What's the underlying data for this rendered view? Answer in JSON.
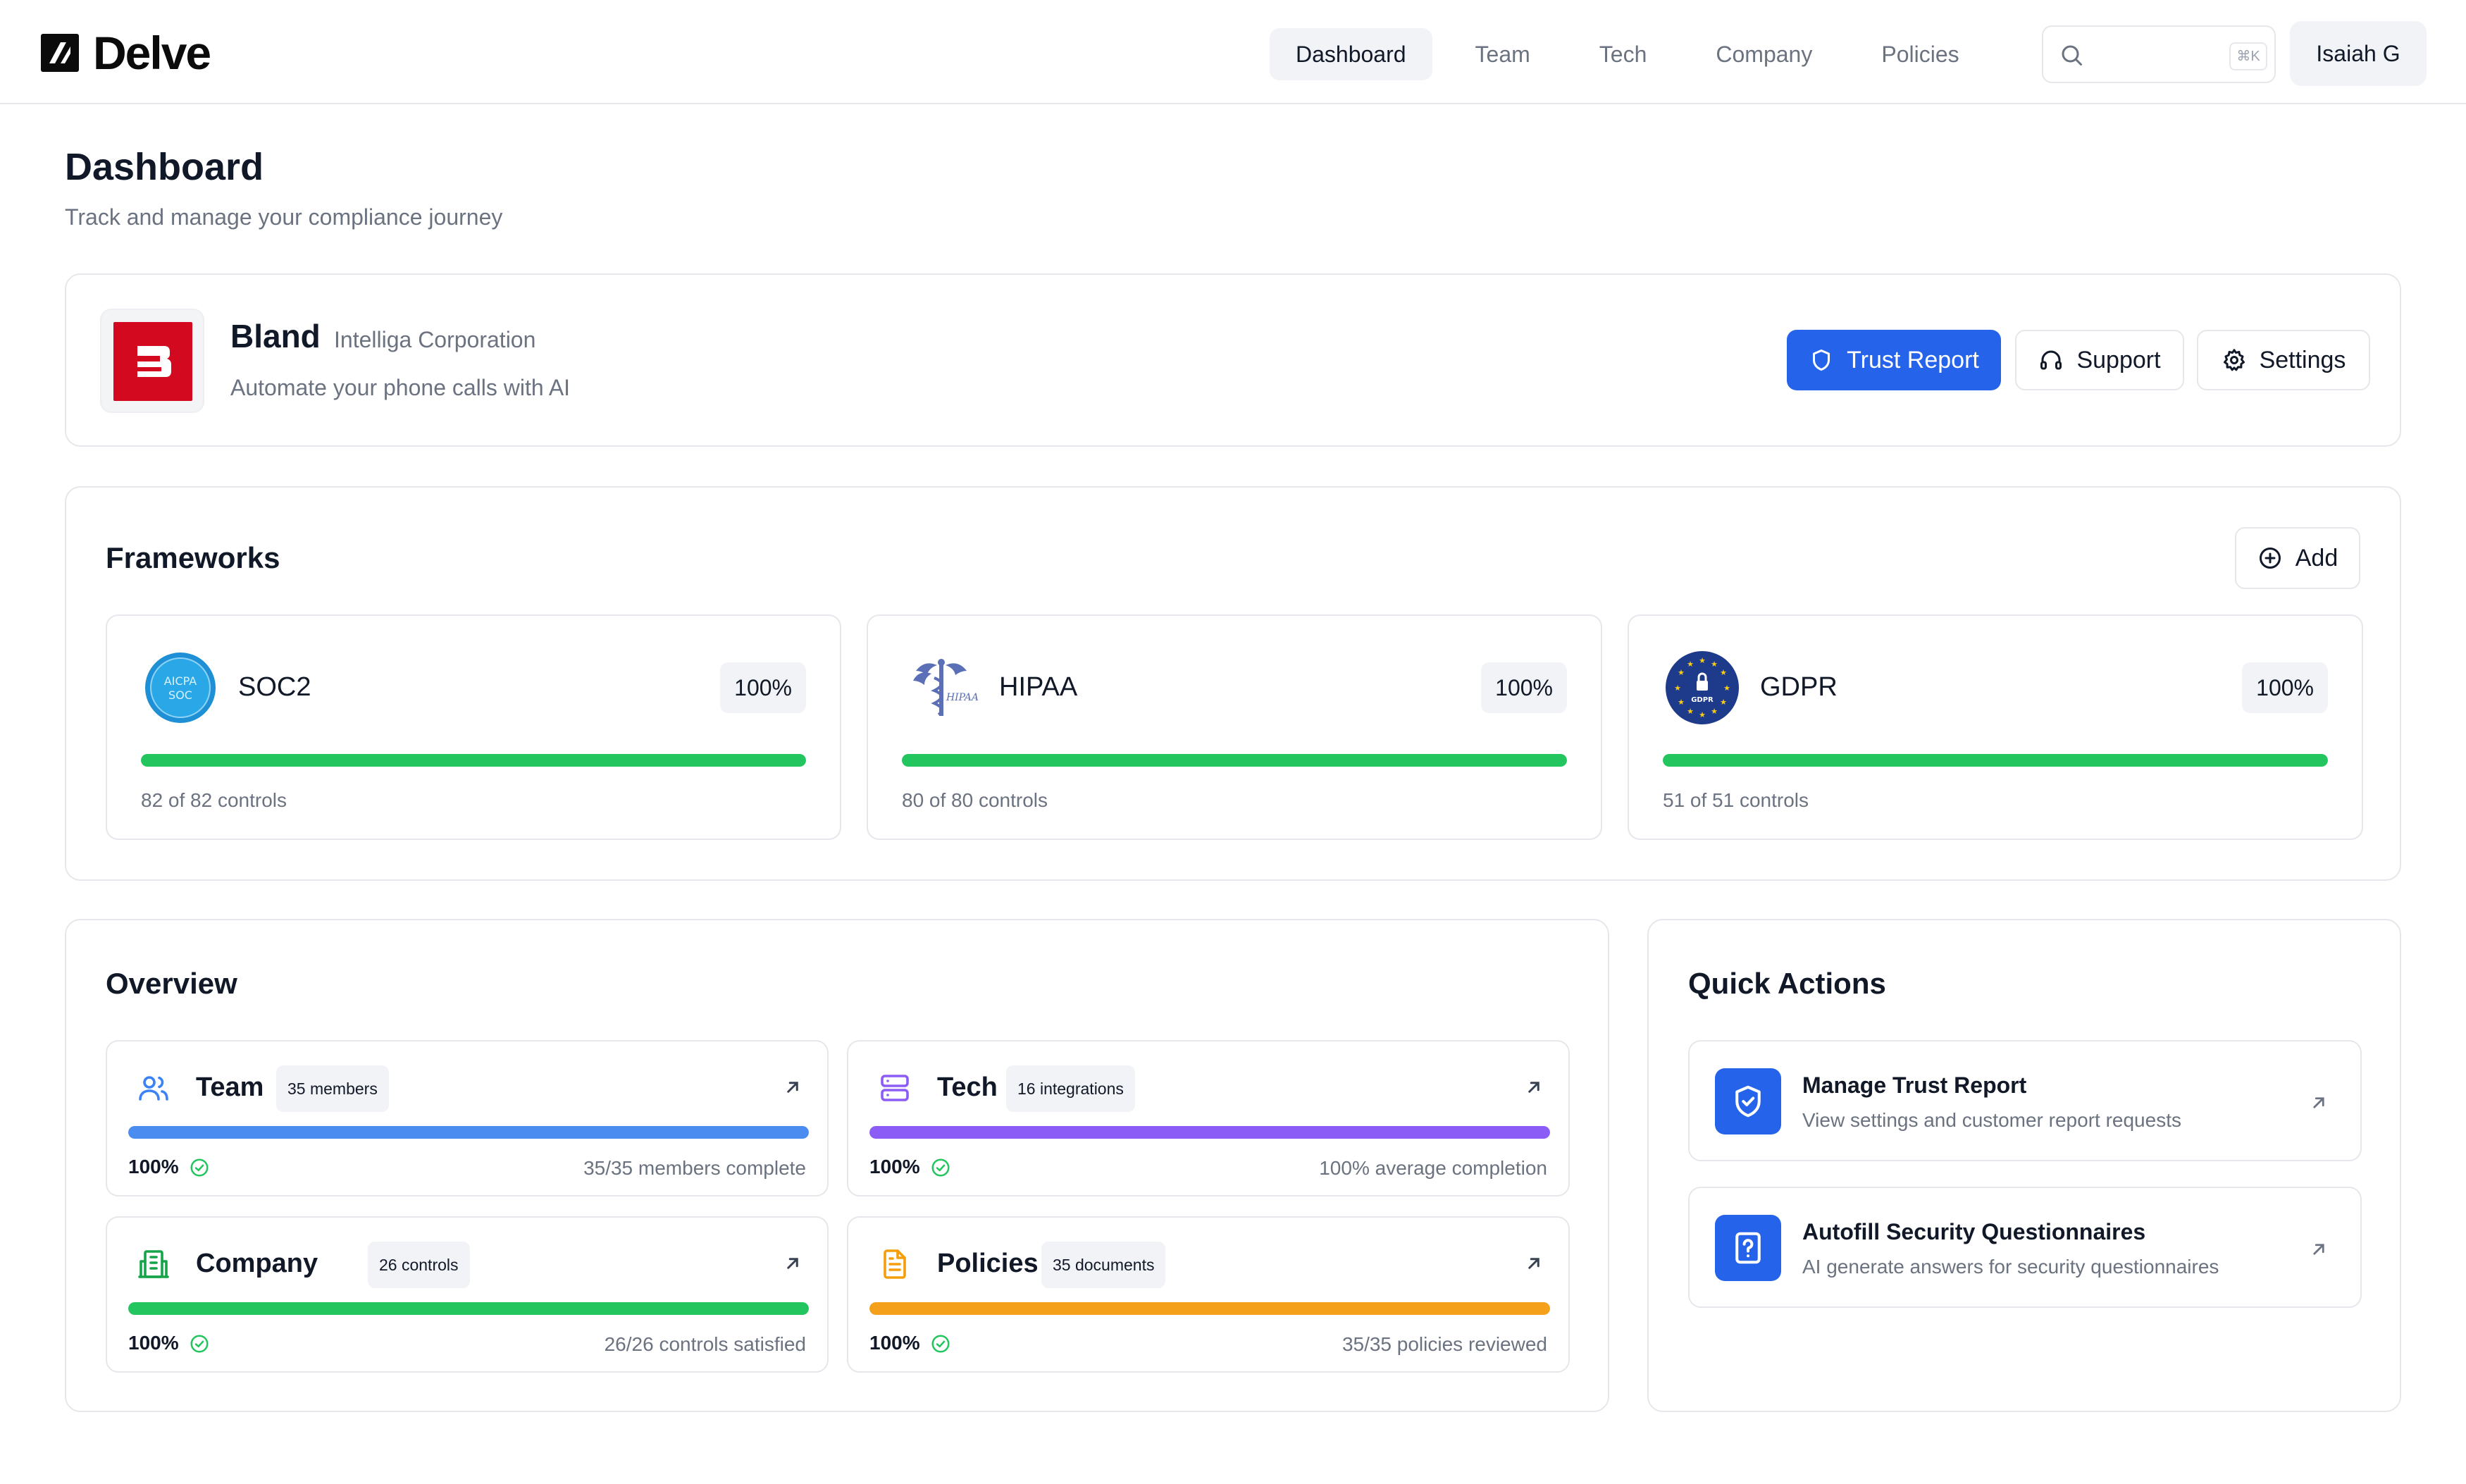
{
  "app": {
    "brand": "Delve",
    "colors": {
      "accent": "#2563eb",
      "success": "#22c55e",
      "team": "#4a8cf0",
      "tech": "#8b5cf6",
      "company": "#22c55e",
      "policies": "#f5a01a",
      "brand_red": "#d2091f"
    }
  },
  "nav": {
    "items": [
      {
        "label": "Dashboard",
        "active": true
      },
      {
        "label": "Team",
        "active": false
      },
      {
        "label": "Tech",
        "active": false
      },
      {
        "label": "Company",
        "active": false
      },
      {
        "label": "Policies",
        "active": false
      }
    ],
    "search": {
      "placeholder": "",
      "shortcut": "⌘K",
      "icon": "search-icon"
    },
    "user": "Isaiah G"
  },
  "header": {
    "title": "Dashboard",
    "subtitle": "Track and manage your compliance journey"
  },
  "company": {
    "name": "Bland",
    "legal_name": "Intelliga Corporation",
    "tagline": "Automate your phone calls with AI",
    "buttons": {
      "trust_report": "Trust Report",
      "support": "Support",
      "settings": "Settings"
    }
  },
  "frameworks": {
    "title": "Frameworks",
    "add_label": "Add",
    "items": [
      {
        "name": "SOC2",
        "percent": "100%",
        "progress": 1.0,
        "controls": "82 of 82 controls",
        "icon": "aicpa-soc-icon"
      },
      {
        "name": "HIPAA",
        "percent": "100%",
        "progress": 1.0,
        "controls": "80 of 80 controls",
        "icon": "hipaa-icon"
      },
      {
        "name": "GDPR",
        "percent": "100%",
        "progress": 1.0,
        "controls": "51 of 51 controls",
        "icon": "gdpr-icon"
      }
    ]
  },
  "overview": {
    "title": "Overview",
    "items": [
      {
        "title": "Team",
        "badge": "35 members",
        "progress": 1.0,
        "percent": "100%",
        "stat": "35/35 members complete",
        "icon": "users-icon"
      },
      {
        "title": "Tech",
        "badge": "16 integrations",
        "progress": 1.0,
        "percent": "100%",
        "stat": "100% average completion",
        "icon": "server-icon"
      },
      {
        "title": "Company",
        "badge": "26 controls",
        "progress": 1.0,
        "percent": "100%",
        "stat": "26/26 controls satisfied",
        "icon": "building-icon"
      },
      {
        "title": "Policies",
        "badge": "35 documents",
        "progress": 1.0,
        "percent": "100%",
        "stat": "35/35 policies reviewed",
        "icon": "document-icon"
      }
    ]
  },
  "quick_actions": {
    "title": "Quick Actions",
    "items": [
      {
        "title": "Manage Trust Report",
        "description": "View settings and customer report requests",
        "icon": "shield-check-icon"
      },
      {
        "title": "Autofill Security Questionnaires",
        "description": "AI generate answers for security questionnaires",
        "icon": "question-file-icon"
      }
    ]
  }
}
